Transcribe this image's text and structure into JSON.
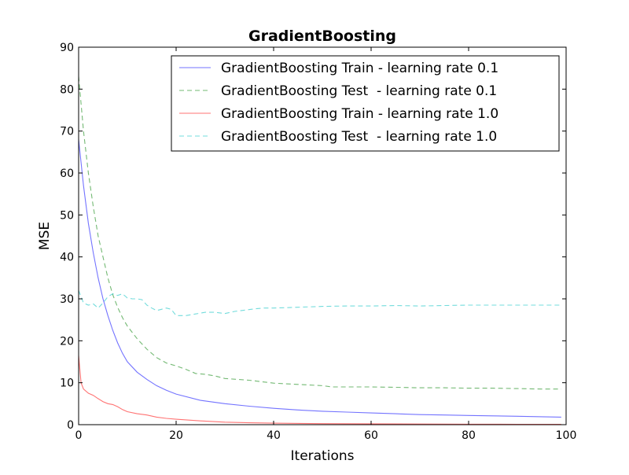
{
  "chart_data": {
    "type": "line",
    "title": "GradientBoosting",
    "xlabel": "Iterations",
    "ylabel": "MSE",
    "xlim": [
      0,
      100
    ],
    "ylim": [
      0,
      90
    ],
    "xticks": [
      0,
      20,
      40,
      60,
      80,
      100
    ],
    "yticks": [
      0,
      10,
      20,
      30,
      40,
      50,
      60,
      70,
      80,
      90
    ],
    "grid": false,
    "legend_position": "top-right",
    "series": [
      {
        "name": "GradientBoosting Train - learning rate 0.1",
        "color": "#0000ff",
        "dash": "solid",
        "x": [
          0,
          1,
          2,
          3,
          4,
          5,
          6,
          7,
          8,
          9,
          10,
          12,
          14,
          16,
          18,
          20,
          25,
          30,
          35,
          40,
          45,
          50,
          55,
          60,
          65,
          70,
          75,
          80,
          85,
          90,
          95,
          99
        ],
        "y": [
          68,
          57,
          48,
          41,
          35,
          30,
          26,
          22.5,
          19.5,
          17,
          15,
          12.5,
          10.8,
          9.3,
          8.2,
          7.3,
          5.8,
          5,
          4.4,
          3.9,
          3.5,
          3.2,
          3,
          2.8,
          2.6,
          2.4,
          2.3,
          2.2,
          2.1,
          2,
          1.9,
          1.8
        ]
      },
      {
        "name": "GradientBoosting Test  - learning rate 0.1",
        "color": "#008000",
        "dash": "dashed",
        "x": [
          0,
          1,
          2,
          3,
          4,
          5,
          6,
          7,
          8,
          9,
          10,
          12,
          14,
          16,
          18,
          20,
          22,
          24,
          26,
          28,
          30,
          35,
          40,
          45,
          50,
          52,
          55,
          60,
          65,
          70,
          75,
          80,
          85,
          90,
          95,
          99
        ],
        "y": [
          83,
          70,
          60,
          52,
          45,
          40,
          35,
          31,
          28,
          25.5,
          23.5,
          20.5,
          18,
          16,
          14.7,
          14,
          13.2,
          12.2,
          12,
          11.6,
          11,
          10.6,
          9.9,
          9.6,
          9.3,
          9,
          9,
          9,
          8.9,
          8.8,
          8.8,
          8.7,
          8.7,
          8.6,
          8.5,
          8.5
        ]
      },
      {
        "name": "GradientBoosting Train - learning rate 1.0",
        "color": "#ff0000",
        "dash": "solid",
        "x": [
          0,
          0.5,
          1,
          2,
          3,
          4,
          5,
          6,
          7,
          8,
          9,
          10,
          12,
          14,
          16,
          18,
          20,
          25,
          30,
          35,
          40,
          50,
          60,
          70,
          80,
          90,
          99
        ],
        "y": [
          16.5,
          10,
          8.5,
          7.5,
          7,
          6.2,
          5.5,
          5,
          4.8,
          4.3,
          3.6,
          3.1,
          2.6,
          2.3,
          1.8,
          1.5,
          1.3,
          0.9,
          0.6,
          0.45,
          0.35,
          0.25,
          0.2,
          0.15,
          0.12,
          0.1,
          0.1
        ]
      },
      {
        "name": "GradientBoosting Test  - learning rate 1.0",
        "color": "#00bfbf",
        "dash": "dashed",
        "x": [
          0,
          1,
          2,
          3,
          4,
          5,
          6,
          7,
          8,
          9,
          10,
          11,
          12,
          13,
          14,
          15,
          16,
          17,
          18,
          19,
          20,
          22,
          24,
          26,
          28,
          30,
          32,
          34,
          36,
          38,
          40,
          45,
          50,
          55,
          60,
          65,
          70,
          75,
          80,
          85,
          90,
          95,
          99
        ],
        "y": [
          32,
          29,
          28.5,
          28.8,
          27.8,
          29,
          30.5,
          31.2,
          30.8,
          31.2,
          30.2,
          30,
          30,
          29.8,
          28.5,
          27.8,
          27.2,
          27.5,
          27.8,
          27.5,
          26,
          26,
          26.4,
          26.8,
          26.8,
          26.5,
          27,
          27.3,
          27.6,
          27.8,
          27.8,
          28,
          28.2,
          28.3,
          28.3,
          28.4,
          28.3,
          28.4,
          28.5,
          28.5,
          28.5,
          28.5,
          28.5
        ]
      }
    ]
  }
}
